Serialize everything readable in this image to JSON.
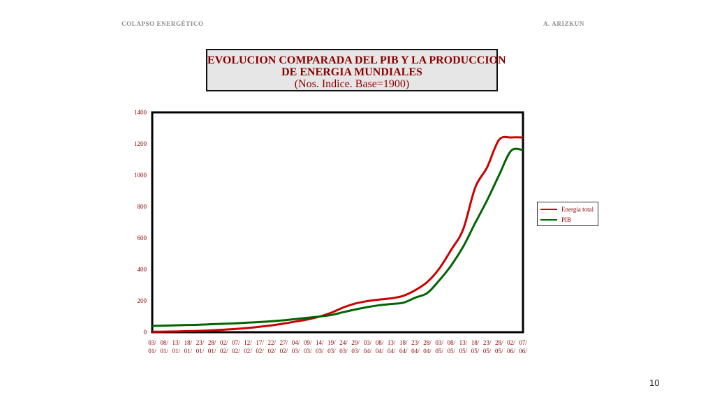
{
  "header": {
    "left": "COLAPSO ENERGÉTICO",
    "right": "A. ARIZKUN"
  },
  "page_number": "10",
  "chart_data": {
    "type": "line",
    "title": [
      "EVOLUCION COMPARADA DEL PIB Y LA PRODUCCION",
      "DE ENERGIA MUNDIALES"
    ],
    "subtitle": "(Nos. Indice. Base=1900)",
    "xlabel": "",
    "ylabel": "",
    "ylim": [
      0,
      1400
    ],
    "yticks": [
      0,
      200,
      400,
      600,
      800,
      1000,
      1200,
      1400
    ],
    "grid": false,
    "legend_position": "right",
    "categories": [
      "03/ 01/",
      "08/ 01/",
      "13/ 01/",
      "18/ 01/",
      "23/ 01/",
      "28/ 01/",
      "02/ 02/",
      "07/ 02/",
      "12/ 02/",
      "17/ 02/",
      "22/ 02/",
      "27/ 02/",
      "04/ 03/",
      "09/ 03/",
      "14/ 03/",
      "19/ 03/",
      "24/ 03/",
      "29/ 03/",
      "03/ 04/",
      "08/ 04/",
      "13/ 04/",
      "18/ 04/",
      "23/ 04/",
      "28/ 04/",
      "03/ 05/",
      "08/ 05/",
      "13/ 05/",
      "18/ 05/",
      "23/ 05/",
      "28/ 05/",
      "02/ 06/",
      "07/ 06/"
    ],
    "series": [
      {
        "name": "Energía total",
        "color": "#cc0000",
        "values": [
          3,
          4,
          5,
          7,
          9,
          12,
          16,
          21,
          27,
          35,
          44,
          55,
          68,
          82,
          100,
          125,
          158,
          183,
          198,
          208,
          216,
          232,
          268,
          320,
          405,
          525,
          655,
          920,
          1050,
          1225,
          1240,
          1240
        ]
      },
      {
        "name": "PIB",
        "color": "#006400",
        "values": [
          40,
          42,
          44,
          46,
          48,
          51,
          54,
          57,
          61,
          65,
          70,
          76,
          84,
          92,
          100,
          110,
          128,
          145,
          160,
          172,
          180,
          188,
          220,
          250,
          330,
          425,
          545,
          695,
          840,
          1000,
          1155,
          1160
        ]
      }
    ]
  }
}
